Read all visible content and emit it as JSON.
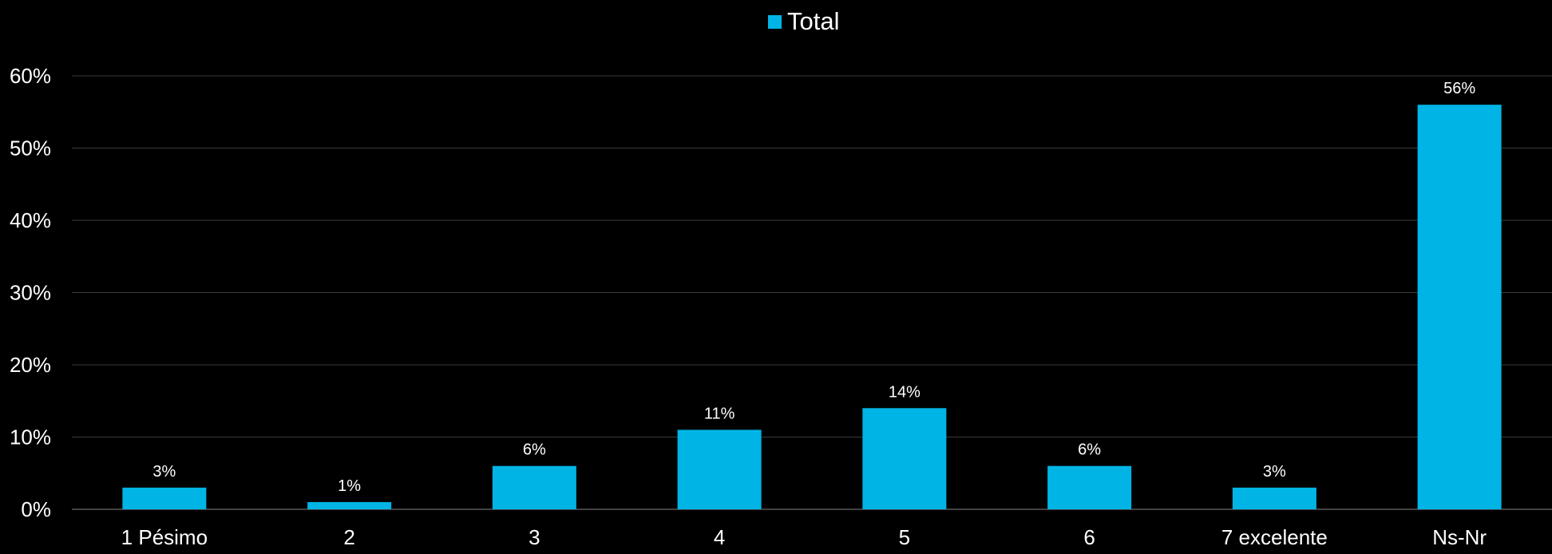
{
  "chart_data": {
    "type": "bar",
    "categories": [
      "1 Pésimo",
      "2",
      "3",
      "4",
      "5",
      "6",
      "7 excelente",
      "Ns-Nr"
    ],
    "series": [
      {
        "name": "Total",
        "values": [
          3,
          1,
          6,
          11,
          14,
          6,
          3,
          56
        ],
        "labels": [
          "3%",
          "1%",
          "6%",
          "11%",
          "14%",
          "6%",
          "3%",
          "56%"
        ]
      }
    ],
    "ylim": [
      0,
      60
    ],
    "yticks": [
      0,
      10,
      20,
      30,
      40,
      50,
      60
    ],
    "ytick_labels": [
      "0%",
      "10%",
      "20%",
      "30%",
      "40%",
      "50%",
      "60%"
    ],
    "grid": true,
    "legend_position": "top-center",
    "colors": {
      "bar": "#00b5e5",
      "background": "#000000",
      "text": "#ffffff",
      "grid": "#3a3a3a"
    }
  }
}
